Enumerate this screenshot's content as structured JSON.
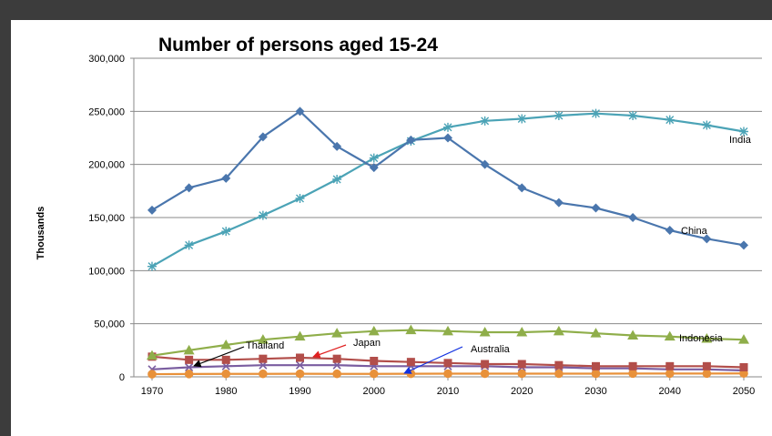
{
  "chart_data": {
    "type": "line",
    "title": "Number of persons aged 15-24",
    "ylabel": "Thousands",
    "xlabel": "",
    "ylim": [
      0,
      300000
    ],
    "yticks": [
      0,
      50000,
      100000,
      150000,
      200000,
      250000,
      300000
    ],
    "ytick_labels": [
      "0",
      "50,000",
      "100,000",
      "150,000",
      "200,000",
      "250,000",
      "300,000"
    ],
    "xticks": [
      1970,
      1980,
      1990,
      2000,
      2010,
      2020,
      2030,
      2040,
      2050
    ],
    "xtick_labels": [
      "1970",
      "1980",
      "1990",
      "2000",
      "2010",
      "2020",
      "2030",
      "2040",
      "2050"
    ],
    "x": [
      1970,
      1975,
      1980,
      1985,
      1990,
      1995,
      2000,
      2005,
      2010,
      2015,
      2020,
      2025,
      2030,
      2035,
      2040,
      2045,
      2050
    ],
    "grid": "horizontal",
    "series": [
      {
        "name": "China",
        "color": "#4a76ad",
        "marker": "diamond",
        "values": [
          157000,
          178000,
          187000,
          226000,
          250000,
          217000,
          197000,
          223000,
          225000,
          200000,
          178000,
          164000,
          159000,
          150000,
          138000,
          130000,
          124000
        ]
      },
      {
        "name": "India",
        "color": "#4ba3b6",
        "marker": "star",
        "values": [
          104000,
          124000,
          137000,
          152000,
          168000,
          186000,
          206000,
          222000,
          235000,
          241000,
          243000,
          246000,
          248000,
          246000,
          242000,
          237000,
          231000
        ]
      },
      {
        "name": "Indonesia",
        "color": "#8fae4a",
        "marker": "triangle",
        "values": [
          20000,
          25000,
          30000,
          35000,
          38000,
          41000,
          43000,
          44000,
          43000,
          42000,
          42000,
          43000,
          41000,
          39000,
          38000,
          36000,
          35000
        ]
      },
      {
        "name": "Japan",
        "color": "#b24e4a",
        "marker": "square",
        "values": [
          19000,
          16000,
          16000,
          17000,
          18000,
          17000,
          15000,
          14000,
          13000,
          12000,
          12000,
          11000,
          10000,
          10000,
          10000,
          10000,
          9000
        ]
      },
      {
        "name": "Thailand",
        "color": "#7a5da0",
        "marker": "x",
        "values": [
          7000,
          9000,
          10000,
          11000,
          11000,
          11000,
          10000,
          10000,
          10000,
          10000,
          9000,
          9000,
          8000,
          8000,
          7000,
          7000,
          6000
        ]
      },
      {
        "name": "Australia",
        "color": "#e8913a",
        "marker": "circle",
        "values": [
          2500,
          2700,
          2800,
          2800,
          2900,
          2800,
          2800,
          2900,
          3000,
          3000,
          3000,
          3000,
          3000,
          3100,
          3100,
          3100,
          3200
        ]
      }
    ],
    "annotations": [
      {
        "text": "India",
        "series": "India",
        "arrow": false
      },
      {
        "text": "China",
        "series": "China",
        "arrow": false
      },
      {
        "text": "Indonesia",
        "series": "Indonesia",
        "arrow": false
      },
      {
        "text": "Thailand",
        "series": "Thailand",
        "arrow": true,
        "arrow_color": "#000000"
      },
      {
        "text": "Japan",
        "series": "Japan",
        "arrow": true,
        "arrow_color": "#e02020"
      },
      {
        "text": "Australia",
        "series": "Australia",
        "arrow": true,
        "arrow_color": "#1030e0"
      }
    ]
  }
}
